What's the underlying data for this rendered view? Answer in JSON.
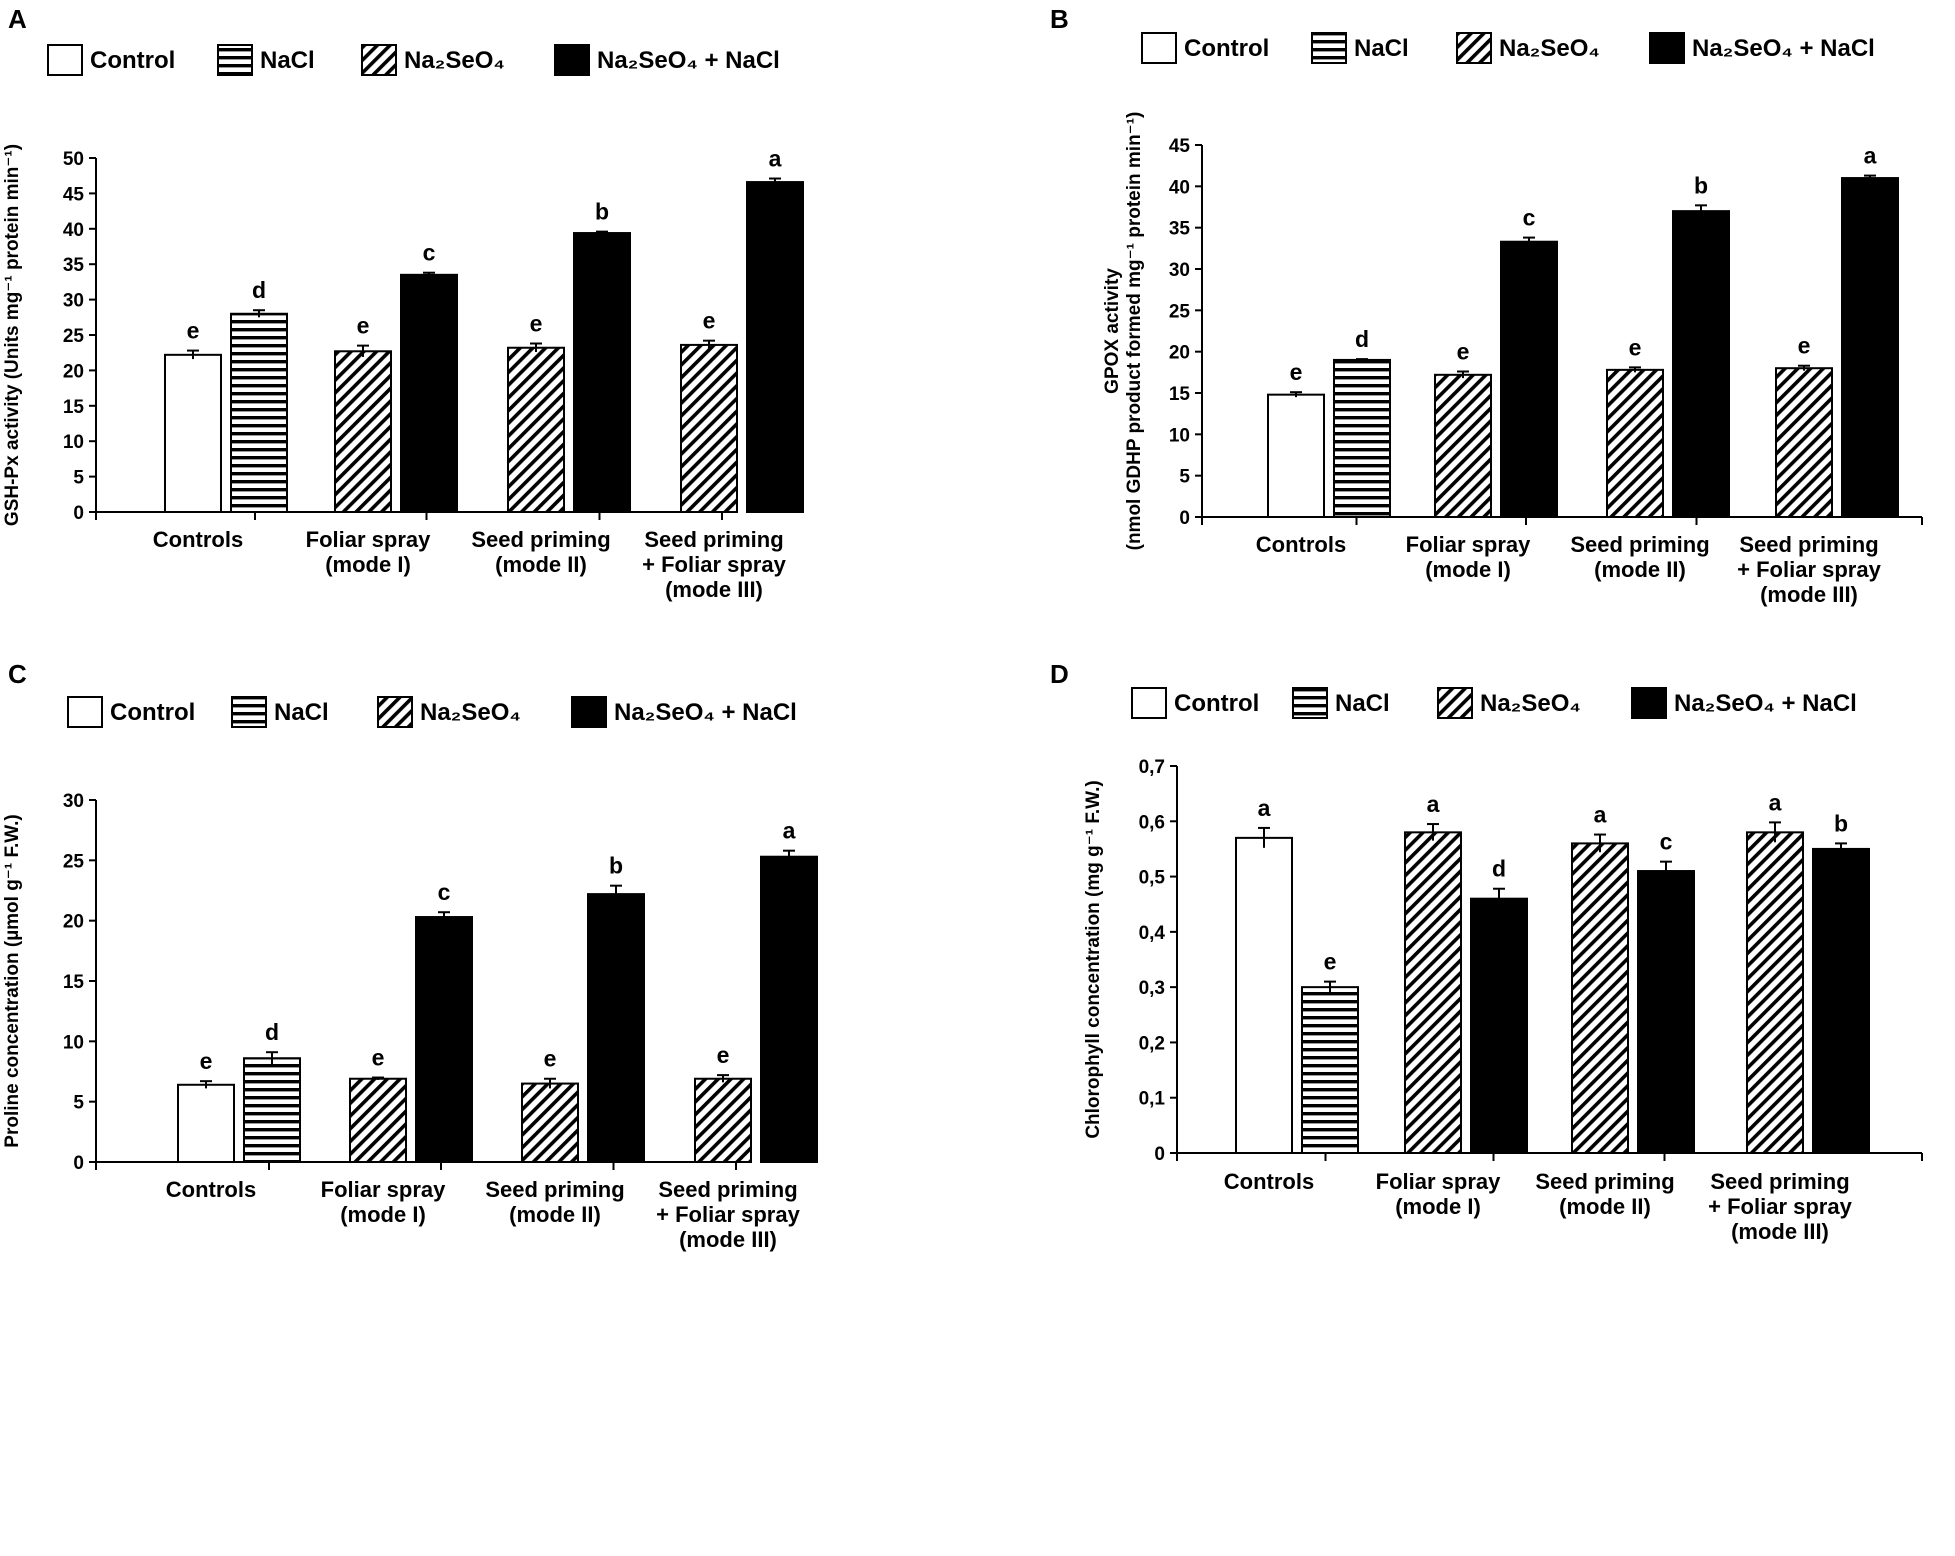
{
  "figure": {
    "panel_labels": [
      "A",
      "B",
      "C",
      "D"
    ]
  },
  "legend": {
    "entries": [
      {
        "key": "control",
        "name": "Control",
        "pattern": "white"
      },
      {
        "key": "nacl",
        "name": "NaCl",
        "pattern": "horizontal"
      },
      {
        "key": "na2seo4",
        "name": "Na₂SeO₄",
        "pattern": "diagonal"
      },
      {
        "key": "na2seo4_nacl",
        "name": "Na₂SeO₄ + NaCl",
        "pattern": "black"
      }
    ]
  },
  "chart_data": [
    {
      "panel": "A",
      "type": "bar",
      "title": "",
      "xlabel": "",
      "ylabel_lines": [
        "GSH-Px activity (Units mg⁻¹ protein min⁻¹)"
      ],
      "ylim": [
        0,
        50
      ],
      "yticks": [
        "0",
        "5",
        "10",
        "15",
        "20",
        "25",
        "30",
        "35",
        "40",
        "45",
        "50"
      ],
      "categories": [
        [
          "Controls"
        ],
        [
          "Foliar spray",
          "(mode I)"
        ],
        [
          "Seed priming",
          "(mode II)"
        ],
        [
          "Seed priming",
          "+ Foliar spray",
          "(mode III)"
        ]
      ],
      "series_names": [
        "Control",
        "NaCl",
        "Na₂SeO₄",
        "Na₂SeO₄ + NaCl"
      ],
      "bars": [
        {
          "group": 0,
          "series": 0,
          "value": 22.2,
          "error": 0.6,
          "letter": "e"
        },
        {
          "group": 0,
          "series": 1,
          "value": 28.0,
          "error": 0.5,
          "letter": "d"
        },
        {
          "group": 1,
          "series": 2,
          "value": 22.7,
          "error": 0.8,
          "letter": "e"
        },
        {
          "group": 1,
          "series": 3,
          "value": 33.5,
          "error": 0.3,
          "letter": "c"
        },
        {
          "group": 2,
          "series": 2,
          "value": 23.2,
          "error": 0.6,
          "letter": "e"
        },
        {
          "group": 2,
          "series": 3,
          "value": 39.4,
          "error": 0.2,
          "letter": "b"
        },
        {
          "group": 3,
          "series": 2,
          "value": 23.6,
          "error": 0.6,
          "letter": "e"
        },
        {
          "group": 3,
          "series": 3,
          "value": 46.6,
          "error": 0.5,
          "letter": "a"
        }
      ]
    },
    {
      "panel": "B",
      "type": "bar",
      "title": "",
      "xlabel": "",
      "ylabel_lines": [
        "GPOX activity",
        "(nmol GDHP product formed mg⁻¹ protein min⁻¹)"
      ],
      "ylim": [
        0,
        45
      ],
      "yticks": [
        "0",
        "5",
        "10",
        "15",
        "20",
        "25",
        "30",
        "35",
        "40",
        "45"
      ],
      "categories": [
        [
          "Controls"
        ],
        [
          "Foliar spray",
          "(mode I)"
        ],
        [
          "Seed priming",
          "(mode II)"
        ],
        [
          "Seed priming",
          "+ Foliar spray",
          "(mode III)"
        ]
      ],
      "series_names": [
        "Control",
        "NaCl",
        "Na₂SeO₄",
        "Na₂SeO₄ + NaCl"
      ],
      "bars": [
        {
          "group": 0,
          "series": 0,
          "value": 14.8,
          "error": 0.3,
          "letter": "e"
        },
        {
          "group": 0,
          "series": 1,
          "value": 19.0,
          "error": 0.1,
          "letter": "d"
        },
        {
          "group": 1,
          "series": 2,
          "value": 17.2,
          "error": 0.4,
          "letter": "e"
        },
        {
          "group": 1,
          "series": 3,
          "value": 33.3,
          "error": 0.5,
          "letter": "c"
        },
        {
          "group": 2,
          "series": 2,
          "value": 17.8,
          "error": 0.3,
          "letter": "e"
        },
        {
          "group": 2,
          "series": 3,
          "value": 37.0,
          "error": 0.7,
          "letter": "b"
        },
        {
          "group": 3,
          "series": 2,
          "value": 18.0,
          "error": 0.3,
          "letter": "e"
        },
        {
          "group": 3,
          "series": 3,
          "value": 41.0,
          "error": 0.3,
          "letter": "a"
        }
      ]
    },
    {
      "panel": "C",
      "type": "bar",
      "title": "",
      "xlabel": "",
      "ylabel_lines": [
        "Proline concentration (µmol g⁻¹ F.W.)"
      ],
      "ylim": [
        0,
        30
      ],
      "yticks": [
        "0",
        "5",
        "10",
        "15",
        "20",
        "25",
        "30"
      ],
      "categories": [
        [
          "Controls"
        ],
        [
          "Foliar spray",
          "(mode I)"
        ],
        [
          "Seed priming",
          "(mode II)"
        ],
        [
          "Seed priming",
          "+ Foliar spray",
          "(mode III)"
        ]
      ],
      "series_names": [
        "Control",
        "NaCl",
        "Na₂SeO₄",
        "Na₂SeO₄ + NaCl"
      ],
      "bars": [
        {
          "group": 0,
          "series": 0,
          "value": 6.4,
          "error": 0.3,
          "letter": "e"
        },
        {
          "group": 0,
          "series": 1,
          "value": 8.6,
          "error": 0.5,
          "letter": "d"
        },
        {
          "group": 1,
          "series": 2,
          "value": 6.9,
          "error": 0.1,
          "letter": "e"
        },
        {
          "group": 1,
          "series": 3,
          "value": 20.3,
          "error": 0.4,
          "letter": "c"
        },
        {
          "group": 2,
          "series": 2,
          "value": 6.5,
          "error": 0.4,
          "letter": "e"
        },
        {
          "group": 2,
          "series": 3,
          "value": 22.2,
          "error": 0.7,
          "letter": "b"
        },
        {
          "group": 3,
          "series": 2,
          "value": 6.9,
          "error": 0.3,
          "letter": "e"
        },
        {
          "group": 3,
          "series": 3,
          "value": 25.3,
          "error": 0.5,
          "letter": "a"
        }
      ]
    },
    {
      "panel": "D",
      "type": "bar",
      "title": "",
      "xlabel": "",
      "ylabel_lines": [
        "Chlorophyll concentration (mg g⁻¹ F.W.)"
      ],
      "ylim": [
        0,
        0.7
      ],
      "yticks": [
        "0",
        "0,1",
        "0,2",
        "0,3",
        "0,4",
        "0,5",
        "0,6",
        "0,7"
      ],
      "categories": [
        [
          "Controls"
        ],
        [
          "Foliar spray",
          "(mode I)"
        ],
        [
          "Seed priming",
          "(mode II)"
        ],
        [
          "Seed priming",
          "+ Foliar spray",
          "(mode III)"
        ]
      ],
      "series_names": [
        "Control",
        "NaCl",
        "Na₂SeO₄",
        "Na₂SeO₄ + NaCl"
      ],
      "bars": [
        {
          "group": 0,
          "series": 0,
          "value": 0.57,
          "error": 0.018,
          "letter": "a"
        },
        {
          "group": 0,
          "series": 1,
          "value": 0.3,
          "error": 0.01,
          "letter": "e"
        },
        {
          "group": 1,
          "series": 2,
          "value": 0.58,
          "error": 0.015,
          "letter": "a"
        },
        {
          "group": 1,
          "series": 3,
          "value": 0.46,
          "error": 0.018,
          "letter": "d"
        },
        {
          "group": 2,
          "series": 2,
          "value": 0.56,
          "error": 0.016,
          "letter": "a"
        },
        {
          "group": 2,
          "series": 3,
          "value": 0.51,
          "error": 0.017,
          "letter": "c"
        },
        {
          "group": 3,
          "series": 2,
          "value": 0.58,
          "error": 0.018,
          "letter": "a"
        },
        {
          "group": 3,
          "series": 3,
          "value": 0.55,
          "error": 0.01,
          "letter": "b"
        }
      ]
    }
  ]
}
